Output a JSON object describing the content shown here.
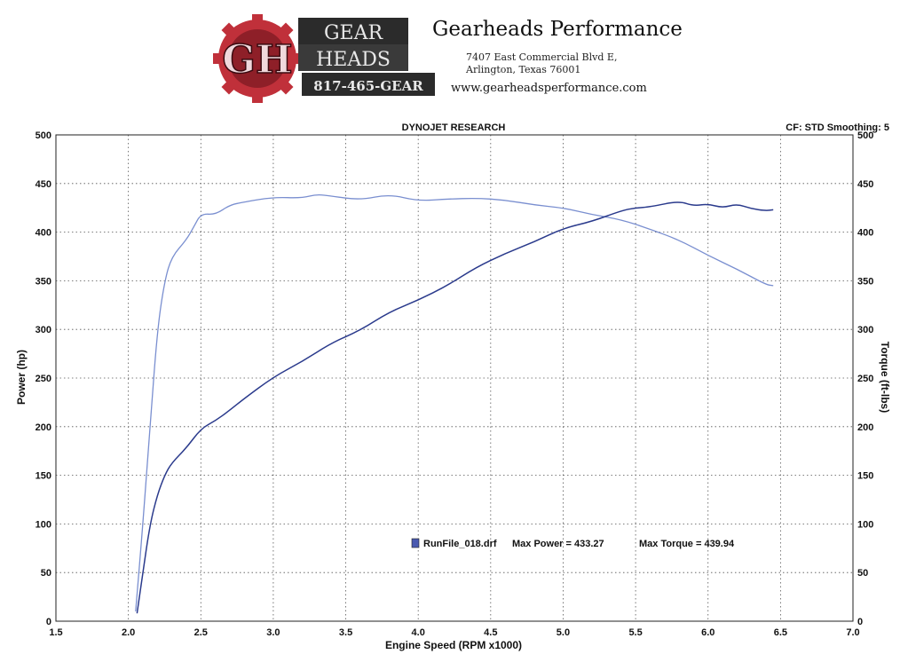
{
  "header": {
    "logo_line1": "GEAR",
    "logo_line2": "HEADS",
    "logo_phone": "817-465-GEAR",
    "logo_initials": "GH",
    "company_name": "Gearheads Performance",
    "address_line1": "7407 East Commercial Blvd E,",
    "address_line2": "Arlington, Texas 76001",
    "website": "www.gearheadsperformance.com"
  },
  "colors": {
    "power_line": "#2a3a8c",
    "torque_line": "#7a8fd0",
    "grid": "#555555",
    "logo_red": "#c0303a",
    "logo_dark": "#2b2b2b"
  },
  "chart_data": {
    "type": "line",
    "title": "DYNOJET RESEARCH",
    "corner_label": "CF: STD  Smoothing: 5",
    "xlabel": "Engine Speed (RPM x1000)",
    "ylabel_left": "Power (hp)",
    "ylabel_right": "Torque (ft-lbs)",
    "xlim": [
      1.5,
      7.0
    ],
    "ylim": [
      0,
      500
    ],
    "xticks": [
      "1.5",
      "2.0",
      "2.5",
      "3.0",
      "3.5",
      "4.0",
      "4.5",
      "5.0",
      "5.5",
      "6.0",
      "6.5",
      "7.0"
    ],
    "yticks": [
      "0",
      "50",
      "100",
      "150",
      "200",
      "250",
      "300",
      "350",
      "400",
      "450",
      "500"
    ],
    "grid": true,
    "annotation": {
      "runfile": "RunFile_018.drf",
      "max_power_label": "Max Power = 433.27",
      "max_torque_label": "Max Torque = 439.94"
    },
    "series": [
      {
        "name": "Power",
        "axis": "left",
        "x": [
          2.06,
          2.1,
          2.15,
          2.2,
          2.25,
          2.3,
          2.4,
          2.5,
          2.6,
          2.7,
          2.8,
          3.0,
          3.2,
          3.4,
          3.6,
          3.8,
          4.0,
          4.2,
          4.4,
          4.6,
          4.8,
          5.0,
          5.2,
          5.4,
          5.5,
          5.6,
          5.8,
          5.9,
          6.0,
          6.1,
          6.2,
          6.3,
          6.4,
          6.45
        ],
        "values": [
          8,
          50,
          100,
          130,
          150,
          163,
          178,
          198,
          206,
          217,
          229,
          251,
          267,
          286,
          299,
          318,
          330,
          345,
          364,
          378,
          390,
          404,
          411,
          422,
          425,
          426,
          432,
          427,
          429,
          425,
          429,
          424,
          422,
          423
        ]
      },
      {
        "name": "Torque",
        "axis": "right",
        "x": [
          2.05,
          2.1,
          2.15,
          2.2,
          2.25,
          2.3,
          2.4,
          2.45,
          2.5,
          2.6,
          2.7,
          2.8,
          3.0,
          3.2,
          3.3,
          3.4,
          3.6,
          3.8,
          4.0,
          4.2,
          4.4,
          4.6,
          4.8,
          5.0,
          5.2,
          5.4,
          5.6,
          5.8,
          6.0,
          6.2,
          6.4,
          6.45
        ],
        "values": [
          10,
          100,
          200,
          300,
          350,
          375,
          392,
          405,
          419,
          418,
          428,
          431,
          436,
          435,
          439,
          437,
          433,
          439,
          432,
          434,
          435,
          433,
          428,
          425,
          418,
          413,
          403,
          392,
          376,
          362,
          346,
          345
        ]
      }
    ]
  }
}
